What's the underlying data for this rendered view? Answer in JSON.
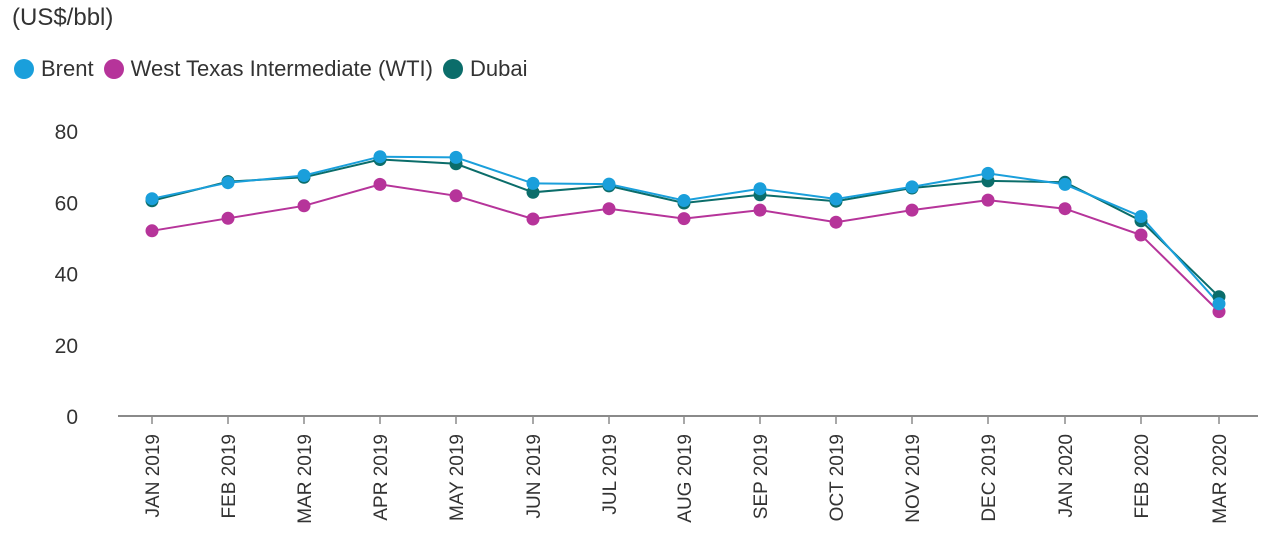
{
  "chart_data": {
    "type": "line",
    "title": "",
    "ylabel": "(US$/bbl)",
    "xlabel": "",
    "ylim": [
      0,
      80
    ],
    "y_ticks": [
      0,
      20,
      40,
      60,
      80
    ],
    "grid": false,
    "legend_position": "top-left",
    "categories": [
      "JAN 2019",
      "FEB 2019",
      "MAR 2019",
      "APR 2019",
      "MAY 2019",
      "JUN 2019",
      "JUL 2019",
      "AUG 2019",
      "SEP 2019",
      "OCT 2019",
      "NOV 2019",
      "DEC 2019",
      "JAN 2020",
      "FEB 2020",
      "MAR 2020"
    ],
    "series": [
      {
        "name": "Brent",
        "color": "#1a9fdb",
        "values": [
          61.0,
          65.5,
          67.5,
          72.8,
          72.6,
          65.3,
          65.1,
          60.5,
          63.8,
          60.9,
          64.3,
          68.1,
          65.0,
          56.0,
          31.5
        ]
      },
      {
        "name": "West Texas Intermediate (WTI)",
        "color": "#b6349a",
        "values": [
          52.0,
          55.5,
          59.0,
          65.0,
          61.8,
          55.3,
          58.2,
          55.4,
          57.8,
          54.4,
          57.8,
          60.6,
          58.2,
          50.8,
          29.3
        ]
      },
      {
        "name": "Dubai",
        "color": "#0b6d6a",
        "values": [
          60.4,
          65.8,
          67.0,
          72.0,
          70.8,
          62.8,
          64.6,
          59.8,
          62.1,
          60.3,
          64.0,
          66.0,
          65.6,
          54.8,
          33.5
        ]
      }
    ]
  }
}
